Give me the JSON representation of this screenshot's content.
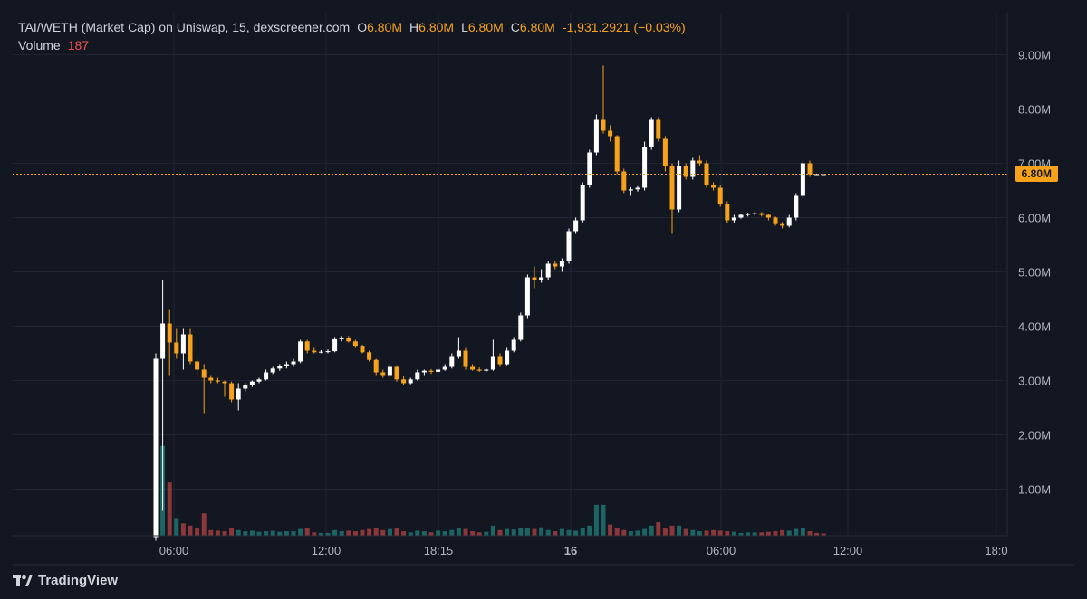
{
  "legend": {
    "title": "TAI/WETH (Market Cap) on Uniswap, 15, dexscreener.com",
    "o_label": "O",
    "o_value": "6.80M",
    "h_label": "H",
    "h_value": "6.80M",
    "l_label": "L",
    "l_value": "6.80M",
    "c_label": "C",
    "c_value": "6.80M",
    "change": "-1,931.2921 (−0.03%)",
    "volume_label": "Volume",
    "volume_value": "187"
  },
  "brand": {
    "name": "TradingView",
    "icon": "tradingview-logo-icon"
  },
  "colors": {
    "background": "#131722",
    "grid": "#1f2433",
    "up": "#ffffff",
    "down": "#f7a21b",
    "volume_up": "#26a69a",
    "volume_down": "#ef5350",
    "last_price": "#f7a21b"
  },
  "chart_data": {
    "type": "candlestick",
    "y_ticks": [
      "1.00M",
      "2.00M",
      "3.00M",
      "4.00M",
      "5.00M",
      "6.00M",
      "7.00M",
      "8.00M",
      "9.00M"
    ],
    "y_tick_values": [
      1.0,
      2.0,
      3.0,
      4.0,
      5.0,
      6.0,
      7.0,
      8.0,
      9.0
    ],
    "y_unit": "M",
    "x_ticks": [
      "06:00",
      "12:00",
      "18:15",
      "16",
      "06:00",
      "12:00",
      "18:0"
    ],
    "last_price_label": "6.80M",
    "last_price": 6.8,
    "candles_ohlc": [
      [
        0.1,
        3.5,
        0.05,
        3.4
      ],
      [
        3.4,
        4.85,
        0.6,
        4.05
      ],
      [
        4.05,
        4.3,
        3.1,
        3.7
      ],
      [
        3.7,
        3.95,
        3.4,
        3.5
      ],
      [
        3.5,
        3.95,
        3.2,
        3.85
      ],
      [
        3.85,
        3.95,
        3.3,
        3.35
      ],
      [
        3.35,
        3.4,
        3.1,
        3.2
      ],
      [
        3.2,
        3.3,
        2.4,
        3.05
      ],
      [
        3.05,
        3.1,
        2.95,
        3.0
      ],
      [
        3.0,
        3.05,
        2.95,
        2.98
      ],
      [
        2.98,
        3.0,
        2.7,
        2.95
      ],
      [
        2.95,
        2.98,
        2.6,
        2.65
      ],
      [
        2.65,
        2.95,
        2.45,
        2.85
      ],
      [
        2.85,
        2.95,
        2.8,
        2.92
      ],
      [
        2.92,
        3.0,
        2.88,
        2.98
      ],
      [
        2.98,
        3.05,
        2.95,
        3.02
      ],
      [
        3.02,
        3.2,
        3.0,
        3.15
      ],
      [
        3.15,
        3.25,
        3.12,
        3.22
      ],
      [
        3.22,
        3.3,
        3.18,
        3.26
      ],
      [
        3.26,
        3.35,
        3.22,
        3.3
      ],
      [
        3.3,
        3.4,
        3.25,
        3.35
      ],
      [
        3.35,
        3.75,
        3.32,
        3.72
      ],
      [
        3.72,
        3.75,
        3.5,
        3.55
      ],
      [
        3.55,
        3.6,
        3.5,
        3.52
      ],
      [
        3.52,
        3.56,
        3.5,
        3.53
      ],
      [
        3.53,
        3.57,
        3.5,
        3.54
      ],
      [
        3.54,
        3.8,
        3.52,
        3.76
      ],
      [
        3.76,
        3.82,
        3.72,
        3.78
      ],
      [
        3.78,
        3.82,
        3.7,
        3.72
      ],
      [
        3.72,
        3.75,
        3.6,
        3.64
      ],
      [
        3.64,
        3.66,
        3.5,
        3.52
      ],
      [
        3.52,
        3.55,
        3.35,
        3.38
      ],
      [
        3.38,
        3.4,
        3.1,
        3.15
      ],
      [
        3.15,
        3.2,
        3.05,
        3.1
      ],
      [
        3.1,
        3.3,
        3.05,
        3.25
      ],
      [
        3.25,
        3.28,
        2.98,
        3.02
      ],
      [
        3.02,
        3.08,
        2.92,
        2.95
      ],
      [
        2.95,
        3.05,
        2.93,
        3.02
      ],
      [
        3.02,
        3.2,
        3.0,
        3.15
      ],
      [
        3.15,
        3.2,
        3.1,
        3.18
      ],
      [
        3.18,
        3.21,
        3.12,
        3.16
      ],
      [
        3.16,
        3.22,
        3.14,
        3.2
      ],
      [
        3.2,
        3.3,
        3.18,
        3.25
      ],
      [
        3.25,
        3.5,
        3.22,
        3.45
      ],
      [
        3.45,
        3.8,
        3.4,
        3.55
      ],
      [
        3.55,
        3.6,
        3.2,
        3.25
      ],
      [
        3.25,
        3.3,
        3.18,
        3.2
      ],
      [
        3.2,
        3.24,
        3.16,
        3.18
      ],
      [
        3.18,
        3.22,
        3.16,
        3.2
      ],
      [
        3.2,
        3.75,
        3.18,
        3.45
      ],
      [
        3.45,
        3.5,
        3.25,
        3.3
      ],
      [
        3.3,
        3.6,
        3.28,
        3.55
      ],
      [
        3.55,
        3.8,
        3.52,
        3.75
      ],
      [
        3.75,
        4.25,
        3.72,
        4.2
      ],
      [
        4.2,
        4.95,
        4.15,
        4.9
      ],
      [
        4.9,
        5.1,
        4.7,
        4.85
      ],
      [
        4.85,
        5.05,
        4.8,
        4.9
      ],
      [
        4.9,
        5.2,
        4.85,
        5.15
      ],
      [
        5.15,
        5.2,
        5.05,
        5.1
      ],
      [
        5.1,
        5.25,
        5.0,
        5.2
      ],
      [
        5.2,
        5.8,
        5.15,
        5.75
      ],
      [
        5.75,
        6.0,
        5.7,
        5.95
      ],
      [
        5.95,
        6.65,
        5.9,
        6.6
      ],
      [
        6.6,
        7.25,
        6.55,
        7.2
      ],
      [
        7.2,
        7.9,
        7.15,
        7.8
      ],
      [
        7.8,
        8.8,
        7.55,
        7.6
      ],
      [
        7.6,
        7.7,
        7.4,
        7.5
      ],
      [
        7.5,
        7.52,
        6.8,
        6.85
      ],
      [
        6.85,
        6.9,
        6.45,
        6.5
      ],
      [
        6.5,
        6.56,
        6.4,
        6.52
      ],
      [
        6.52,
        6.58,
        6.48,
        6.55
      ],
      [
        6.55,
        7.4,
        6.5,
        7.3
      ],
      [
        7.3,
        7.85,
        7.25,
        7.8
      ],
      [
        7.8,
        7.85,
        7.4,
        7.45
      ],
      [
        7.45,
        7.5,
        6.85,
        6.95
      ],
      [
        6.95,
        7.0,
        5.7,
        6.15
      ],
      [
        6.15,
        7.05,
        6.1,
        6.95
      ],
      [
        6.95,
        7.0,
        6.7,
        6.75
      ],
      [
        6.75,
        7.1,
        6.7,
        7.05
      ],
      [
        7.05,
        7.15,
        6.95,
        7.0
      ],
      [
        7.0,
        7.05,
        6.55,
        6.6
      ],
      [
        6.6,
        6.65,
        6.5,
        6.55
      ],
      [
        6.55,
        6.6,
        6.2,
        6.25
      ],
      [
        6.25,
        6.3,
        5.9,
        5.95
      ],
      [
        5.95,
        6.05,
        5.9,
        6.0
      ],
      [
        6.0,
        6.07,
        5.98,
        6.05
      ],
      [
        6.05,
        6.09,
        6.02,
        6.07
      ],
      [
        6.07,
        6.1,
        6.04,
        6.08
      ],
      [
        6.08,
        6.1,
        6.02,
        6.05
      ],
      [
        6.05,
        6.07,
        5.95,
        6.0
      ],
      [
        6.0,
        6.02,
        5.85,
        5.88
      ],
      [
        5.88,
        5.92,
        5.8,
        5.85
      ],
      [
        5.85,
        6.05,
        5.82,
        6.0
      ],
      [
        6.0,
        6.45,
        5.95,
        6.4
      ],
      [
        6.4,
        7.05,
        6.35,
        7.0
      ],
      [
        7.0,
        7.05,
        6.75,
        6.8
      ],
      [
        6.8,
        6.81,
        6.79,
        6.8
      ],
      [
        6.8,
        6.8,
        6.79,
        6.8
      ]
    ],
    "volume_up": [
      true,
      true,
      false,
      true,
      false,
      false,
      false,
      false,
      false,
      false,
      false,
      false,
      true,
      true,
      true,
      true,
      true,
      true,
      true,
      true,
      true,
      true,
      false,
      false,
      true,
      true,
      true,
      true,
      false,
      false,
      false,
      false,
      false,
      false,
      true,
      false,
      false,
      true,
      true,
      true,
      false,
      true,
      true,
      true,
      true,
      false,
      false,
      false,
      true,
      true,
      false,
      true,
      true,
      true,
      true,
      false,
      true,
      true,
      false,
      true,
      true,
      true,
      true,
      true,
      true,
      true,
      false,
      false,
      false,
      true,
      true,
      true,
      true,
      false,
      false,
      false,
      true,
      false,
      true,
      true,
      false,
      false,
      false,
      false,
      true,
      true,
      true,
      true,
      false,
      false,
      false,
      false,
      true,
      true,
      true,
      false,
      false,
      false
    ],
    "volumes": [
      180,
      160,
      95,
      30,
      22,
      18,
      14,
      40,
      10,
      9,
      8,
      14,
      10,
      8,
      9,
      7,
      8,
      9,
      7,
      8,
      8,
      12,
      14,
      6,
      5,
      5,
      10,
      8,
      9,
      8,
      10,
      12,
      14,
      10,
      12,
      13,
      8,
      6,
      9,
      8,
      6,
      9,
      8,
      10,
      14,
      12,
      8,
      6,
      7,
      18,
      10,
      12,
      11,
      13,
      14,
      12,
      15,
      10,
      8,
      12,
      10,
      9,
      14,
      18,
      55,
      55,
      20,
      14,
      10,
      8,
      9,
      12,
      18,
      24,
      14,
      18,
      18,
      12,
      10,
      8,
      9,
      10,
      9,
      8,
      7,
      5,
      6,
      6,
      6,
      7,
      8,
      10,
      9,
      12,
      14,
      8,
      5,
      4
    ],
    "volume_ticks": []
  }
}
